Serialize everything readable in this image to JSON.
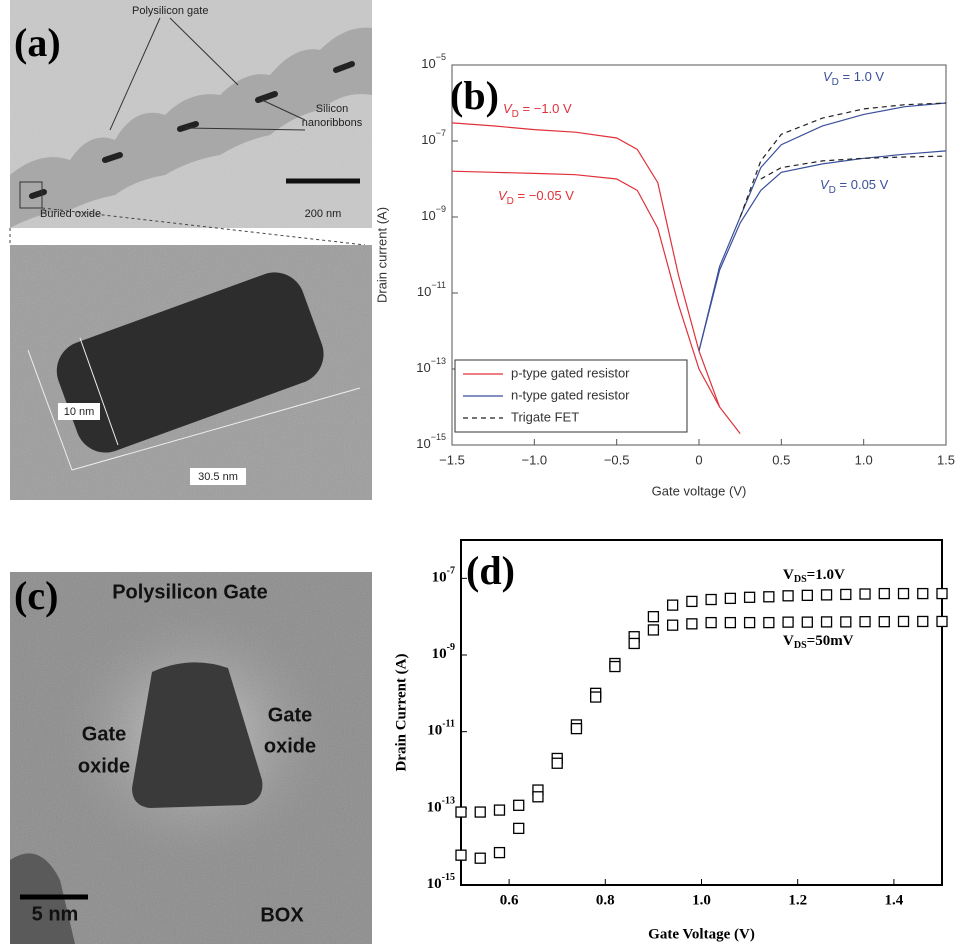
{
  "panel_a": {
    "label": "(a)",
    "annotations": [
      "Polysilicon gate",
      "Silicon",
      "nanoribbons",
      "Buried oxide",
      "200 nm",
      "10 nm",
      "30.5 nm"
    ]
  },
  "panel_c": {
    "label": "(c)",
    "annotations": [
      "Polysilicon Gate",
      "Gate",
      "oxide",
      "Gate",
      "oxide",
      "BOX",
      "5 nm"
    ]
  },
  "chart_data": [
    {
      "type": "line",
      "panel_label": "(b)",
      "xlabel": "Gate voltage (V)",
      "ylabel": "Drain current (A)",
      "log_y": true,
      "legend": "lower left",
      "x": [
        -1.5,
        -1.25,
        -1.0,
        -0.75,
        -0.5,
        -0.375,
        -0.25,
        -0.125,
        0,
        0.125,
        0.25,
        0.375,
        0.5,
        0.75,
        1.0,
        1.25,
        1.5
      ],
      "xlim": [
        -1.5,
        1.5
      ],
      "xticks": [
        {
          "value": -1.5,
          "label": "−1.5"
        },
        {
          "value": -1.0,
          "label": "−1.0"
        },
        {
          "value": -0.5,
          "label": "−0.5"
        },
        0,
        0.5,
        {
          "value": 1.0,
          "label": "1.0"
        },
        1.5
      ],
      "ylim": [
        1e-15,
        1e-05
      ],
      "yticks": [
        {
          "value": 1e-05,
          "label": "10",
          "exponent": "−5"
        },
        {
          "value": 1e-07,
          "label": "10",
          "exponent": "−7"
        },
        {
          "value": 1e-09,
          "label": "10",
          "exponent": "−9"
        },
        {
          "value": 1e-11,
          "label": "10",
          "exponent": "−11"
        },
        {
          "value": 1e-13,
          "label": "10",
          "exponent": "−13"
        },
        {
          "value": 1e-15,
          "label": "10",
          "exponent": "−15"
        }
      ],
      "series": [
        {
          "name": "p-type gated resistor",
          "color": "#e0303a",
          "dash": false,
          "values": [
            3e-07,
            2.5e-07,
            2e-07,
            1.7e-07,
            1.2e-07,
            6e-08,
            8e-09,
            3e-11,
            3e-13,
            1e-14,
            2e-15,
            null,
            null,
            null,
            null,
            null,
            null
          ]
        },
        {
          "color": "#e0303a",
          "dash": false,
          "values": [
            1.6e-08,
            1.5e-08,
            1.4e-08,
            1.3e-08,
            1e-08,
            5e-09,
            5e-10,
            5e-12,
            1e-13,
            1e-14,
            null,
            null,
            null,
            null,
            null,
            null,
            null
          ]
        },
        {
          "name": "n-type gated resistor",
          "color": "#3a4f9a",
          "dash": false,
          "values": [
            null,
            null,
            null,
            null,
            null,
            null,
            null,
            null,
            3e-13,
            5e-11,
            1e-09,
            2e-08,
            8e-08,
            2.5e-07,
            5e-07,
            8e-07,
            1e-06
          ]
        },
        {
          "color": "#3a4f9a",
          "dash": false,
          "values": [
            null,
            null,
            null,
            null,
            null,
            null,
            null,
            null,
            3e-13,
            4e-11,
            7e-10,
            5e-09,
            1.5e-08,
            2.5e-08,
            3.5e-08,
            4.5e-08,
            5.5e-08
          ]
        },
        {
          "name": "Trigate FET",
          "color": "#222222",
          "dash": true,
          "values": [
            null,
            null,
            null,
            null,
            null,
            null,
            null,
            null,
            null,
            null,
            1e-09,
            3e-08,
            1.5e-07,
            4e-07,
            7e-07,
            9e-07,
            1e-06
          ]
        },
        {
          "color": "#222222",
          "dash": true,
          "values": [
            null,
            null,
            null,
            null,
            null,
            null,
            null,
            null,
            null,
            null,
            null,
            1e-08,
            2e-08,
            3e-08,
            3.5e-08,
            3.8e-08,
            4e-08
          ]
        }
      ],
      "annotations": [
        {
          "symbol": "V",
          "subscript": "D",
          "text": " = −1.0 V",
          "color": "#e0303a"
        },
        {
          "symbol": "V",
          "subscript": "D",
          "text": " = −0.05 V",
          "color": "#e0303a"
        },
        {
          "symbol": "V",
          "subscript": "D",
          "text": " = 1.0 V",
          "color": "#3a4f9a"
        },
        {
          "symbol": "V",
          "subscript": "D",
          "text": " = 0.05 V",
          "color": "#3a4f9a"
        }
      ]
    },
    {
      "type": "scatter",
      "panel_label": "(d)",
      "xlabel": "Gate Voltage (V)",
      "ylabel": "Drain Current (A)",
      "log_y": true,
      "x": [
        0.5,
        0.54,
        0.58,
        0.62,
        0.66,
        0.7,
        0.74,
        0.78,
        0.82,
        0.86,
        0.9,
        0.94,
        0.98,
        1.02,
        1.06,
        1.1,
        1.14,
        1.18,
        1.22,
        1.26,
        1.3,
        1.34,
        1.38,
        1.42,
        1.46,
        1.5
      ],
      "xlim": [
        0.5,
        1.5
      ],
      "xticks": [
        0.6,
        0.8,
        {
          "value": 1.0,
          "label": "1.0"
        },
        1.2,
        1.4
      ],
      "ylim": [
        1e-15,
        1e-06
      ],
      "yticks": [
        {
          "value": 1e-07,
          "label": "10",
          "exponent": "-7"
        },
        {
          "value": 1e-09,
          "label": "10",
          "exponent": "-9"
        },
        {
          "value": 1e-11,
          "label": "10",
          "exponent": "-11"
        },
        {
          "value": 1e-13,
          "label": "10",
          "exponent": "-13"
        },
        {
          "value": 1e-15,
          "label": "10",
          "exponent": "-15"
        }
      ],
      "series": [
        {
          "color": "#000000",
          "values": [
            8e-14,
            8e-14,
            9e-14,
            1.2e-13,
            3e-13,
            2e-12,
            1.5e-11,
            1e-10,
            6e-10,
            3e-09,
            1e-08,
            2e-08,
            2.5e-08,
            2.8e-08,
            3e-08,
            3.2e-08,
            3.3e-08,
            3.5e-08,
            3.6e-08,
            3.7e-08,
            3.8e-08,
            3.9e-08,
            4e-08,
            4e-08,
            4e-08,
            4e-08
          ]
        },
        {
          "color": "#000000",
          "values": [
            6e-15,
            5e-15,
            7e-15,
            3e-14,
            2e-13,
            1.5e-12,
            1.2e-11,
            8e-11,
            5e-10,
            2e-09,
            4.5e-09,
            6e-09,
            6.5e-09,
            7e-09,
            7e-09,
            7e-09,
            7e-09,
            7.2e-09,
            7.2e-09,
            7.3e-09,
            7.3e-09,
            7.4e-09,
            7.4e-09,
            7.5e-09,
            7.5e-09,
            7.5e-09
          ]
        }
      ],
      "annotations": [
        {
          "symbol": "V",
          "subscript": "DS",
          "text": "=1.0V",
          "color": "#000000"
        },
        {
          "symbol": "V",
          "subscript": "DS",
          "text": "=50mV",
          "color": "#000000"
        }
      ]
    }
  ]
}
